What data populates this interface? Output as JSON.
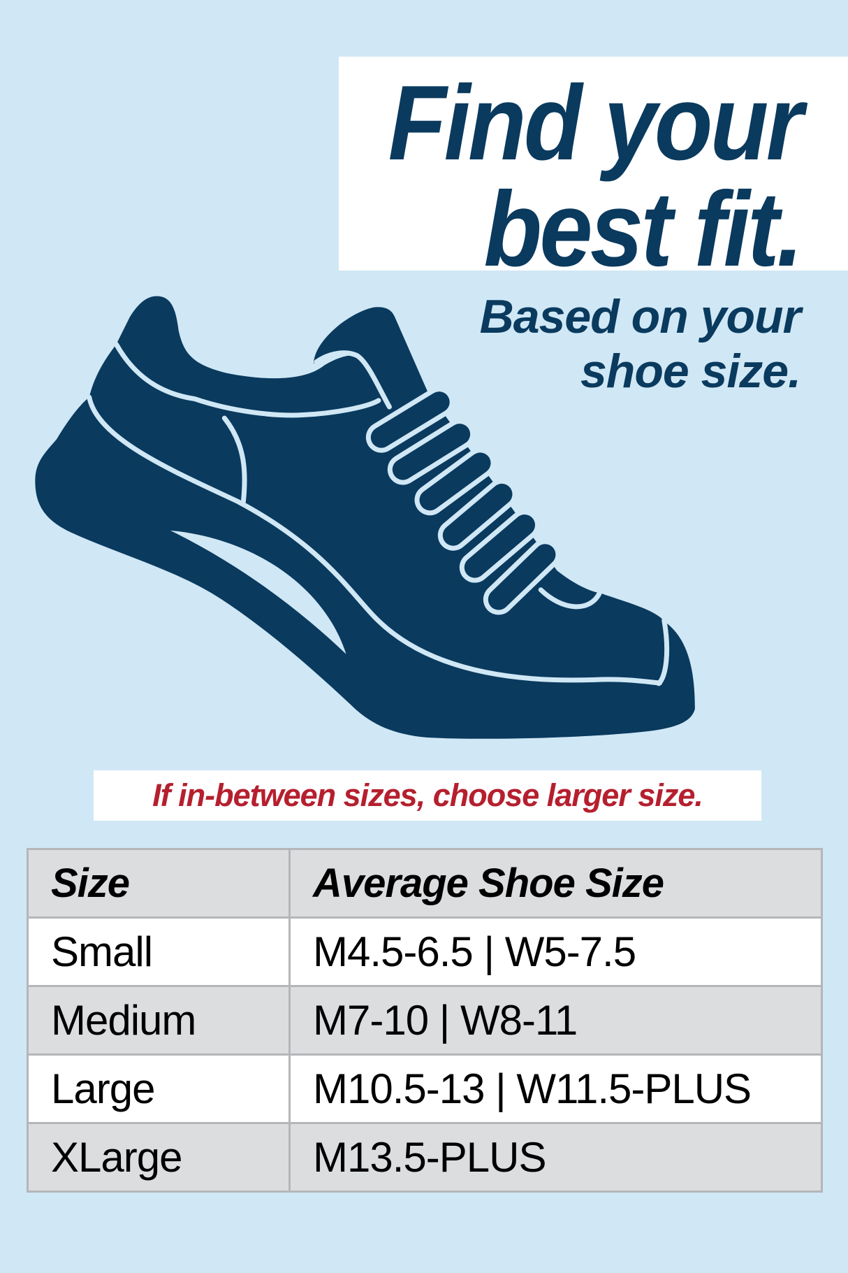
{
  "headline": {
    "line1": "Find your",
    "line2": "best fit."
  },
  "subheadline": {
    "line1": "Based on your",
    "line2": "shoe size."
  },
  "illustration": {
    "icon": "sneaker-icon"
  },
  "note": "If in-between sizes, choose larger size.",
  "size_table": {
    "headers": [
      "Size",
      "Average Shoe Size"
    ],
    "rows": [
      {
        "size": "Small",
        "shoe": "M4.5-6.5 | W5-7.5"
      },
      {
        "size": "Medium",
        "shoe": "M7-10 | W8-11"
      },
      {
        "size": "Large",
        "shoe": "M10.5-13 | W11.5-PLUS"
      },
      {
        "size": "XLarge",
        "shoe": "M13.5-PLUS"
      }
    ]
  },
  "colors": {
    "background": "#d0e7f5",
    "navy": "#0a3a5e",
    "note_red": "#b51f2e",
    "row_gray": "#dcdddf"
  }
}
